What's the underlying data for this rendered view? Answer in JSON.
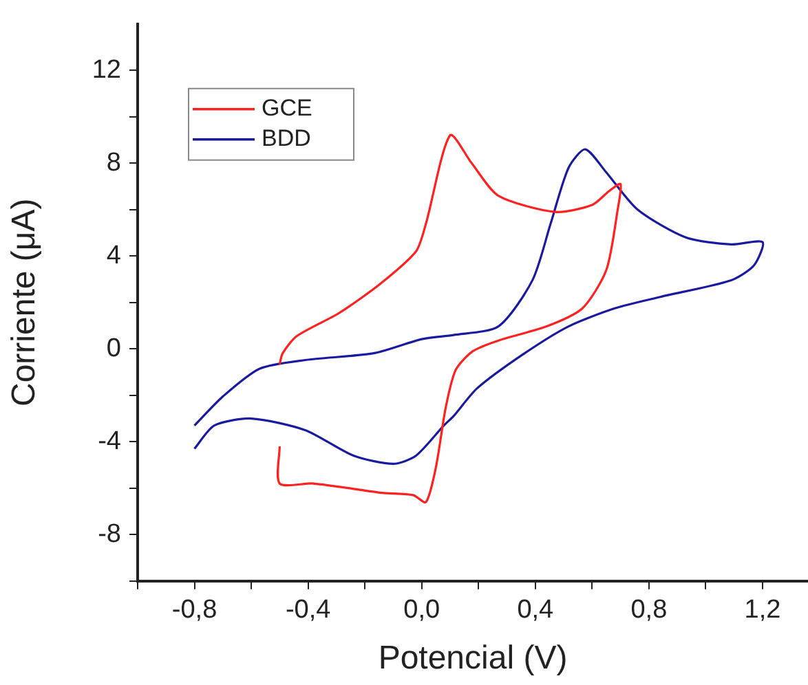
{
  "chart_data": {
    "type": "line",
    "xlabel": "Potencial (V)",
    "ylabel": "Corriente (μA)",
    "xlim": [
      -1.0,
      1.36
    ],
    "ylim": [
      -10,
      14
    ],
    "xticks": [
      {
        "value": -1.0,
        "label": null
      },
      {
        "value": -0.8,
        "label": "-0,8"
      },
      {
        "value": -0.6,
        "label": null
      },
      {
        "value": -0.4,
        "label": "-0,4"
      },
      {
        "value": -0.2,
        "label": null
      },
      {
        "value": 0.0,
        "label": "0,0"
      },
      {
        "value": 0.2,
        "label": null
      },
      {
        "value": 0.4,
        "label": "0,4"
      },
      {
        "value": 0.6,
        "label": null
      },
      {
        "value": 0.8,
        "label": "0,8"
      },
      {
        "value": 1.0,
        "label": null
      },
      {
        "value": 1.2,
        "label": "1,2"
      }
    ],
    "yticks": [
      {
        "value": -10,
        "label": null
      },
      -8,
      {
        "value": -6,
        "label": null
      },
      -4,
      {
        "value": -2,
        "label": null
      },
      0,
      {
        "value": 2,
        "label": null
      },
      4,
      {
        "value": 6,
        "label": null
      },
      8,
      {
        "value": 10,
        "label": null
      },
      12
    ],
    "grid": false,
    "legend": "top left",
    "marker": "none",
    "line_style": "solid",
    "series": [
      {
        "name": "GCE",
        "color": "#ff2020",
        "x": [
          -0.5,
          -0.5,
          -0.38,
          -0.14,
          -0.03,
          0.015,
          0.05,
          0.085,
          0.12,
          0.18,
          0.27,
          0.44,
          0.566,
          0.65,
          0.69,
          0.7,
          0.66,
          0.6,
          0.47,
          0.27,
          0.176,
          0.1,
          0.015,
          -0.02,
          -0.146,
          -0.29,
          -0.44,
          -0.49,
          -0.5
        ],
        "values": [
          -4.2,
          -5.8,
          -5.8,
          -6.2,
          -6.3,
          -6.6,
          -5.1,
          -2.5,
          -0.9,
          -0.1,
          0.36,
          0.97,
          1.75,
          3.4,
          6.0,
          7.1,
          6.8,
          6.2,
          5.9,
          6.6,
          8.0,
          9.2,
          5.4,
          4.2,
          2.8,
          1.55,
          0.55,
          -0.2,
          -0.66
        ]
      },
      {
        "name": "BDD",
        "color": "#1a1aa0",
        "x": [
          -0.8,
          -0.7,
          -0.57,
          -0.41,
          -0.166,
          0.0,
          0.112,
          0.27,
          0.39,
          0.454,
          0.517,
          0.576,
          0.65,
          0.76,
          0.93,
          1.09,
          1.2,
          1.17,
          1.09,
          0.84,
          0.68,
          0.517,
          0.356,
          0.195,
          0.112,
          0.078,
          -0.02,
          -0.1,
          -0.24,
          -0.41,
          -0.6,
          -0.73,
          -0.8
        ],
        "values": [
          -3.3,
          -2.05,
          -0.85,
          -0.48,
          -0.18,
          0.42,
          0.6,
          0.97,
          2.96,
          5.4,
          7.8,
          8.6,
          7.6,
          6.0,
          4.8,
          4.5,
          4.6,
          3.6,
          2.96,
          2.24,
          1.75,
          0.97,
          -0.24,
          -1.7,
          -2.9,
          -3.3,
          -4.6,
          -4.95,
          -4.6,
          -3.5,
          -3.0,
          -3.3,
          -4.3
        ]
      }
    ]
  }
}
